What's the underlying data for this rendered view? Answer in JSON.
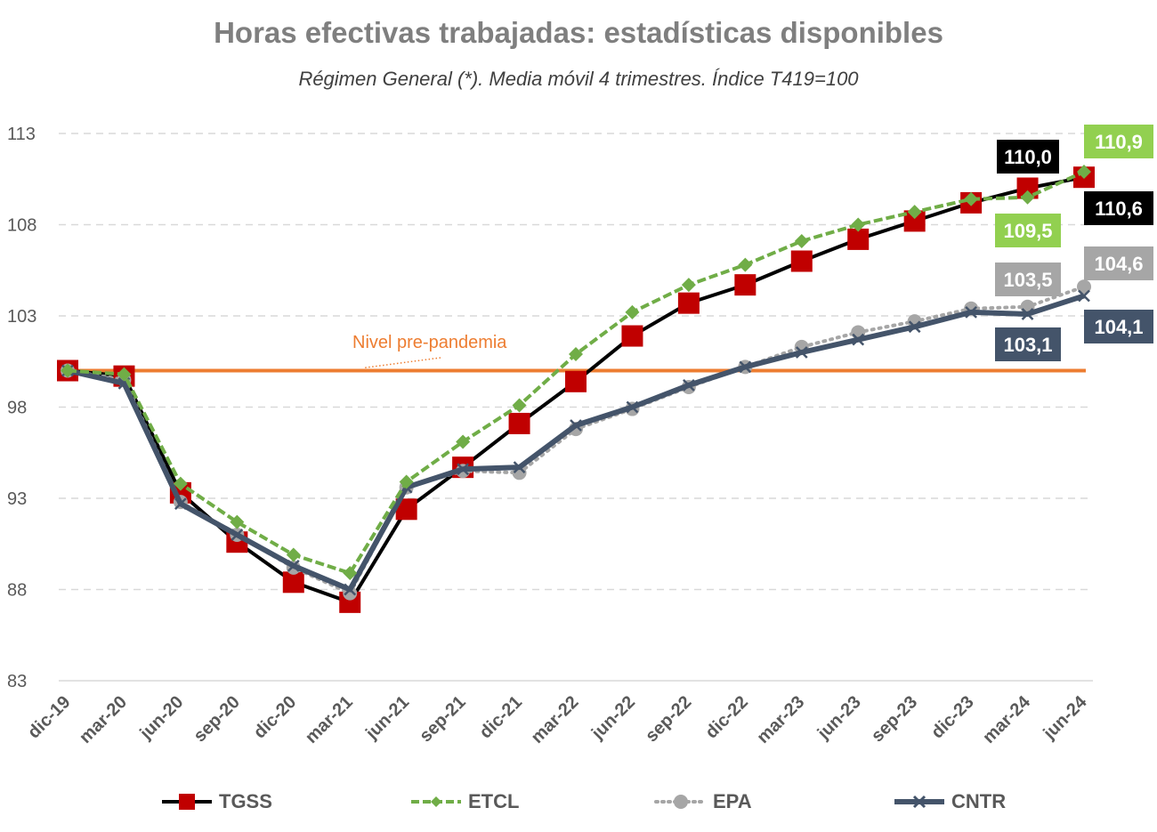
{
  "chart_data": {
    "type": "line",
    "title": "Horas efectivas trabajadas: estadísticas disponibles",
    "subtitle": "Régimen General (*). Media móvil 4 trimestres. Índice T419=100",
    "categories": [
      "dic-19",
      "mar-20",
      "jun-20",
      "sep-20",
      "dic-20",
      "mar-21",
      "jun-21",
      "sep-21",
      "dic-21",
      "mar-22",
      "jun-22",
      "sep-22",
      "dic-22",
      "mar-23",
      "jun-23",
      "sep-23",
      "dic-23",
      "mar-24",
      "jun-24"
    ],
    "ylim": [
      83,
      113
    ],
    "yticks": [
      "113",
      "108",
      "103",
      "98",
      "93",
      "88",
      "83"
    ],
    "grid": true,
    "legend_position": "bottom",
    "reference_line": {
      "label": "Nivel pre-pandemia",
      "value": 100,
      "color": "#ed7d31"
    },
    "series": [
      {
        "name": "TGSS",
        "color": "#c00000",
        "line": "#000000",
        "values": [
          100.0,
          99.7,
          93.3,
          90.6,
          88.4,
          87.3,
          92.4,
          94.7,
          97.1,
          99.4,
          101.9,
          103.7,
          104.7,
          106.0,
          107.2,
          108.2,
          109.2,
          110.0,
          110.6
        ]
      },
      {
        "name": "ETCL",
        "color": "#70ad47",
        "line": "#70ad47",
        "values": [
          100.0,
          99.8,
          93.8,
          91.7,
          89.9,
          88.9,
          93.9,
          96.1,
          98.1,
          100.9,
          103.2,
          104.7,
          105.8,
          107.1,
          108.0,
          108.7,
          109.4,
          109.5,
          110.9
        ]
      },
      {
        "name": "EPA",
        "color": "#a6a6a6",
        "line": "#a6a6a6",
        "values": [
          100.0,
          99.5,
          92.8,
          91.0,
          89.2,
          87.8,
          93.6,
          94.5,
          94.4,
          96.8,
          97.9,
          99.1,
          100.2,
          101.3,
          102.1,
          102.7,
          103.4,
          103.5,
          104.6
        ]
      },
      {
        "name": "CNTR",
        "color": "#44546a",
        "line": "#44546a",
        "values": [
          100.0,
          99.3,
          92.7,
          91.0,
          89.3,
          88.0,
          93.6,
          94.6,
          94.7,
          97.0,
          98.0,
          99.2,
          100.2,
          101.0,
          101.7,
          102.4,
          103.2,
          103.1,
          104.1
        ]
      }
    ],
    "data_labels": [
      {
        "text": "110,0",
        "series": "TGSS",
        "bg": "#000000",
        "fg": "#ffffff"
      },
      {
        "text": "110,9",
        "series": "ETCL",
        "bg": "#92d050",
        "fg": "#ffffff"
      },
      {
        "text": "109,5",
        "series": "ETCL",
        "bg": "#92d050",
        "fg": "#ffffff"
      },
      {
        "text": "110,6",
        "series": "TGSS",
        "bg": "#000000",
        "fg": "#ffffff"
      },
      {
        "text": "103,5",
        "series": "EPA",
        "bg": "#a6a6a6",
        "fg": "#ffffff"
      },
      {
        "text": "104,6",
        "series": "EPA",
        "bg": "#a6a6a6",
        "fg": "#ffffff"
      },
      {
        "text": "103,1",
        "series": "CNTR",
        "bg": "#44546a",
        "fg": "#ffffff"
      },
      {
        "text": "104,1",
        "series": "CNTR",
        "bg": "#44546a",
        "fg": "#ffffff"
      }
    ]
  }
}
